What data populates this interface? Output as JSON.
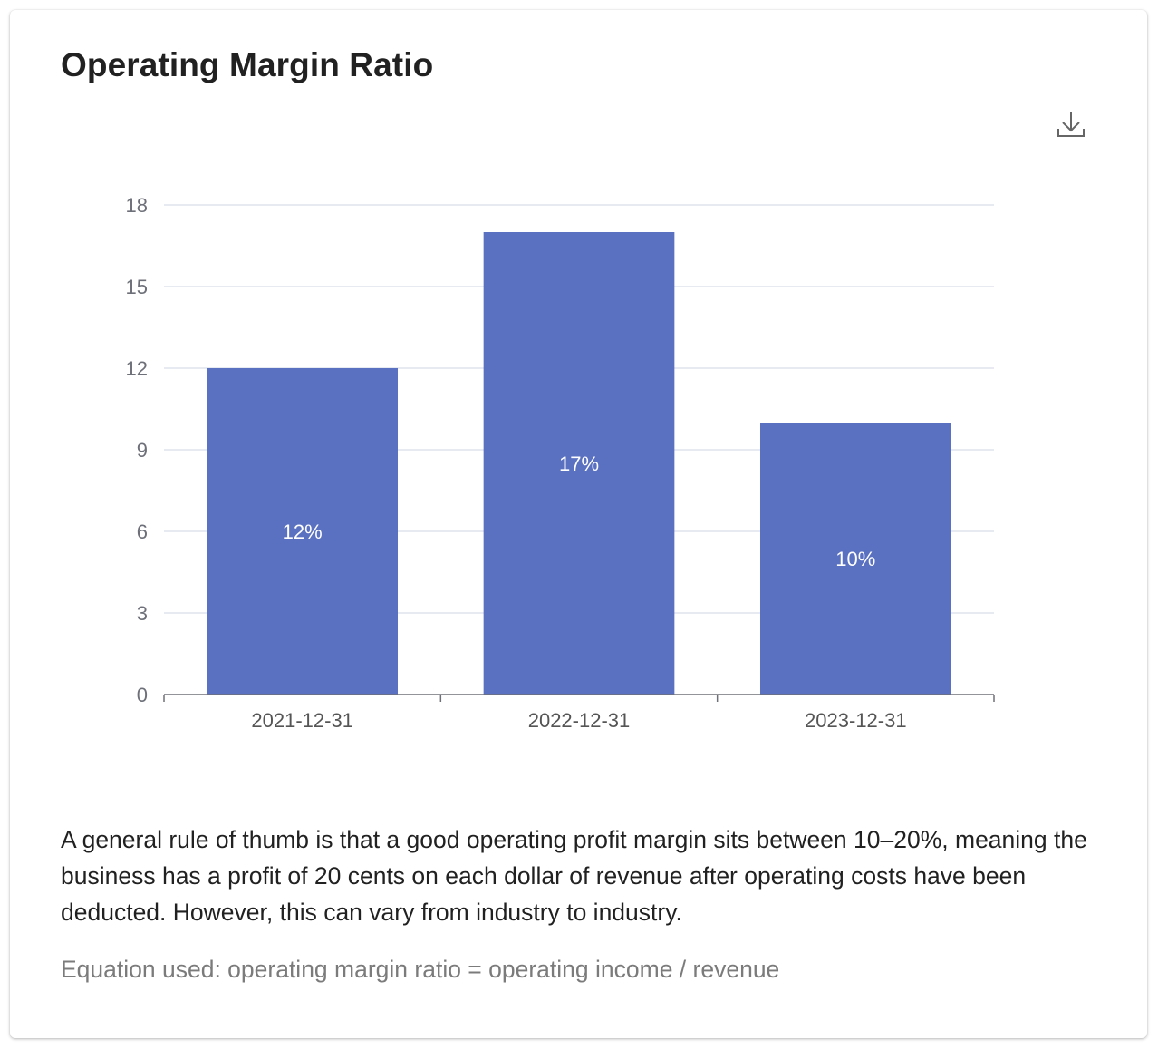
{
  "card": {
    "title": "Operating Margin Ratio",
    "download_icon": "download-icon",
    "description": "A general rule of thumb is that a good operating profit margin sits between 10–20%, meaning the business has a profit of 20 cents on each dollar of revenue after operating costs have been deducted. However, this can vary from industry to industry.",
    "equation": "Equation used: operating margin ratio = operating income / revenue"
  },
  "colors": {
    "bar": "#5a70c0",
    "grid": "#e0e3ee",
    "axis": "#6e7079",
    "tick_text": "#6e7079",
    "label_text": "#ffffff"
  },
  "chart_data": {
    "type": "bar",
    "title": "",
    "xlabel": "",
    "ylabel": "",
    "categories": [
      "2021-12-31",
      "2022-12-31",
      "2023-12-31"
    ],
    "values": [
      12,
      17,
      10
    ],
    "data_labels": [
      "12%",
      "17%",
      "10%"
    ],
    "y_ticks": [
      0,
      3,
      6,
      9,
      12,
      15,
      18
    ],
    "ylim": [
      0,
      18
    ],
    "grid": true,
    "legend": "none"
  }
}
